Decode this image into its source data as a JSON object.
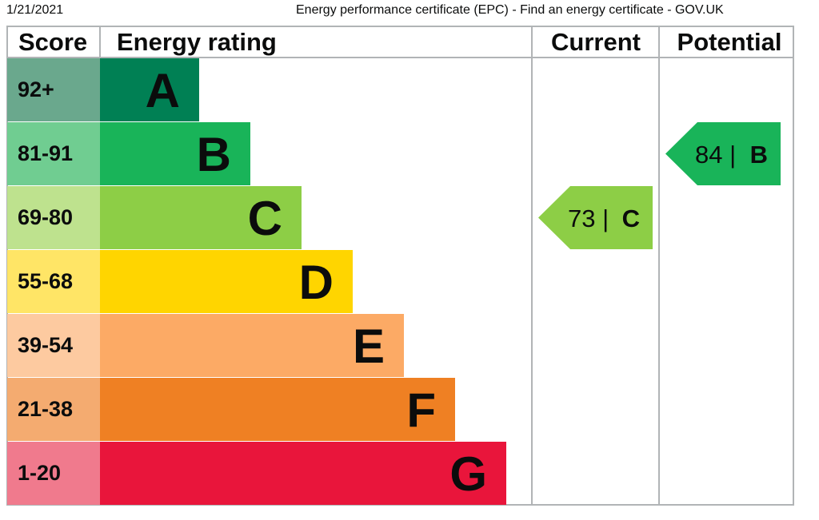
{
  "print_header": {
    "date": "1/21/2021",
    "page_title": "Energy performance certificate (EPC) - Find an energy certificate - GOV.UK"
  },
  "chart_data": {
    "type": "bar",
    "columns": {
      "score": "Score",
      "rating": "Energy rating",
      "current": "Current",
      "potential": "Potential"
    },
    "bands": [
      {
        "letter": "A",
        "score_range": "92+",
        "min": 92,
        "max": 100,
        "color": "#008054",
        "score_bg": "#6aa88d"
      },
      {
        "letter": "B",
        "score_range": "81-91",
        "min": 81,
        "max": 91,
        "color": "#19b459",
        "score_bg": "#70cd91"
      },
      {
        "letter": "C",
        "score_range": "69-80",
        "min": 69,
        "max": 80,
        "color": "#8dce46",
        "score_bg": "#bee28e"
      },
      {
        "letter": "D",
        "score_range": "55-68",
        "min": 55,
        "max": 68,
        "color": "#ffd500",
        "score_bg": "#ffe566"
      },
      {
        "letter": "E",
        "score_range": "39-54",
        "min": 39,
        "max": 54,
        "color": "#fcaa65",
        "score_bg": "#fdcaa0"
      },
      {
        "letter": "F",
        "score_range": "21-38",
        "min": 21,
        "max": 38,
        "color": "#ef8023",
        "score_bg": "#f4ab70"
      },
      {
        "letter": "G",
        "score_range": "1-20",
        "min": 1,
        "max": 20,
        "color": "#e9153b",
        "score_bg": "#f07a8d"
      }
    ],
    "current": {
      "score": 73,
      "band": "C",
      "label": "73 |",
      "letter": "C"
    },
    "potential": {
      "score": 84,
      "band": "B",
      "label": "84 |",
      "letter": "B"
    }
  }
}
